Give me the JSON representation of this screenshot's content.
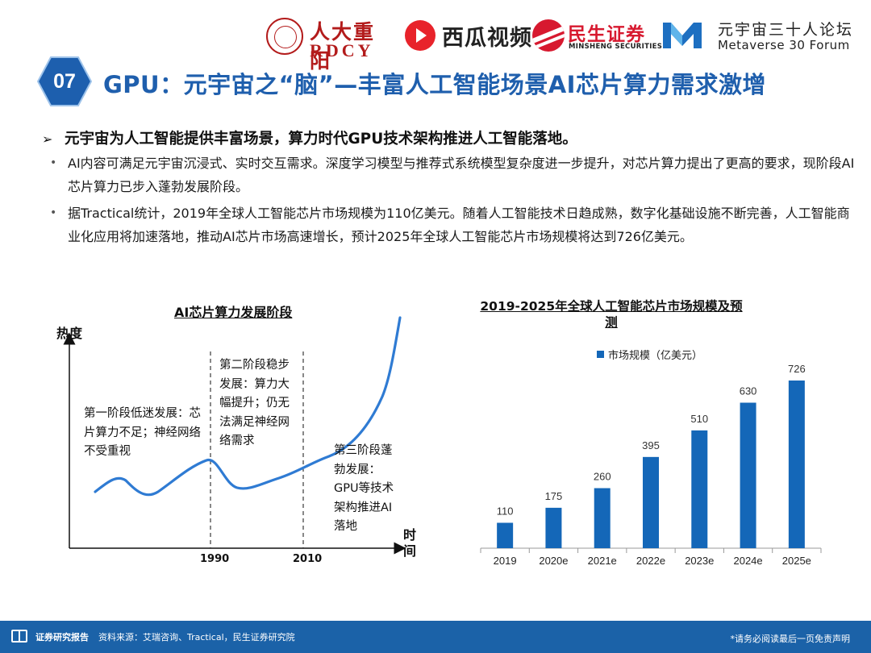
{
  "header": {
    "logos": {
      "rdcy_cn": "人大重阳",
      "rdcy_en": "RDCY",
      "xigua": "西瓜视频",
      "minsheng_cn": "民生证券",
      "minsheng_en": "MINSHENG SECURITIES",
      "metaverse_cn": "元宇宙三十人论坛",
      "metaverse_en": "Metaverse 30 Forum"
    },
    "section_number": "07",
    "title": "GPU：元宇宙之“脑”—丰富人工智能场景AI芯片算力需求激增",
    "brand_color": "#1f5fad"
  },
  "content": {
    "lead": "元宇宙为人工智能提供丰富场景，算力时代GPU技术架构推进人工智能落地。",
    "lead_marker": "➢",
    "bullets": [
      "AI内容可满足元宇宙沉浸式、实时交互需求。深度学习模型与推荐式系统模型复杂度进一步提升，对芯片算力提出了更高的要求，现阶段AI芯片算力已步入蓬勃发展阶段。",
      "据Tractical统计，2019年全球人工智能芯片市场规模为110亿美元。随着人工智能技术日趋成熟，数字化基础设施不断完善，人工智能商业化应用将加速落地，推动AI芯片市场高速增长，预计2025年全球人工智能芯片市场规模将达到726亿美元。"
    ]
  },
  "stage_chart": {
    "title": "AI芯片算力发展阶段",
    "y_label": "热度",
    "x_label": "时间",
    "milestones": [
      "1990",
      "2010"
    ],
    "stages": [
      "第一阶段低迷发展：芯片算力不足；神经网络不受重视",
      "第二阶段稳步发展：算力大幅提升；仍无法满足神经网络需求",
      "第三阶段蓬勃发展：GPU等技术架构推进AI落地"
    ]
  },
  "chart_data": {
    "type": "bar",
    "title": "2019-2025年全球人工智能芯片市场规模及预测",
    "legend": [
      "市场规模（亿美元）"
    ],
    "legend_position": "top-center",
    "categories": [
      "2019",
      "2020e",
      "2021e",
      "2022e",
      "2023e",
      "2024e",
      "2025e"
    ],
    "series": [
      {
        "name": "市场规模（亿美元）",
        "values": [
          110,
          175,
          260,
          395,
          510,
          630,
          726
        ]
      }
    ],
    "ylim": [
      0,
      726
    ],
    "grid": false,
    "bar_color": "#1467b8"
  },
  "footer": {
    "brand": "证券研究报告",
    "source": "资料来源：艾瑞咨询、Tractical，民生证券研究院",
    "disclaimer": "*请务必阅读最后一页免责声明"
  }
}
